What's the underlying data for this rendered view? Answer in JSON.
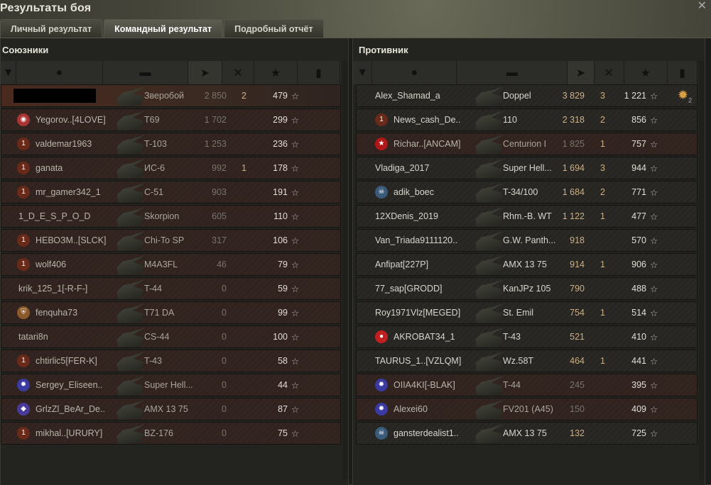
{
  "window": {
    "title": "Результаты боя",
    "close_icon": "close-icon"
  },
  "tabs": [
    {
      "label": "Личный результат",
      "active": false
    },
    {
      "label": "Командный результат",
      "active": true
    },
    {
      "label": "Подробный отчёт",
      "active": false
    }
  ],
  "header_icons": [
    "rank-icon",
    "player-icon",
    "tank-icon",
    "damage-icon",
    "kills-icon",
    "xp-icon",
    "medal-icon"
  ],
  "sort_column": "damage",
  "colors": {
    "alive_damage": "#cdb083",
    "dead_row": "#34261f",
    "self_row": "#4a2a1e"
  },
  "allies": {
    "title": "Союзники",
    "rows": [
      {
        "name": "",
        "redacted": true,
        "self": true,
        "tank": "Зверобой",
        "damage": "2 850",
        "kills": "2",
        "xp": "479",
        "dead": true,
        "badge": ""
      },
      {
        "name": "Yegorov..[4LOVE]",
        "tank": "T69",
        "damage": "1 702",
        "kills": "",
        "xp": "299",
        "dead": true,
        "badge": "rank-emblem-icon"
      },
      {
        "name": "valdemar1963",
        "tank": "T-103",
        "damage": "1 253",
        "kills": "",
        "xp": "236",
        "dead": true,
        "badge": "rank-1-icon"
      },
      {
        "name": "ganata",
        "tank": "ИС-6",
        "damage": "992",
        "kills": "1",
        "xp": "178",
        "dead": true,
        "badge": "rank-1-icon"
      },
      {
        "name": "mr_gamer342_1",
        "tank": "С-51",
        "damage": "903",
        "kills": "",
        "xp": "191",
        "dead": true,
        "badge": "rank-1-icon"
      },
      {
        "name": "1_D_E_S_P_O_D",
        "tank": "Skorpion",
        "damage": "605",
        "kills": "",
        "xp": "110",
        "dead": true,
        "badge": ""
      },
      {
        "name": "НЕВОЗМ..[SLCK]",
        "tank": "Chi-To SP",
        "damage": "317",
        "kills": "",
        "xp": "106",
        "dead": true,
        "badge": "rank-1-icon"
      },
      {
        "name": "wolf406",
        "tank": "M4A3FL",
        "damage": "46",
        "kills": "",
        "xp": "79",
        "dead": true,
        "badge": "rank-1-icon"
      },
      {
        "name": "krik_125_1[-R-F-]",
        "tank": "T-44",
        "damage": "0",
        "kills": "",
        "xp": "59",
        "dead": true,
        "badge": ""
      },
      {
        "name": "fenquha73",
        "tank": "T71 DA",
        "damage": "0",
        "kills": "",
        "xp": "99",
        "dead": true,
        "badge": "shield-badge-icon"
      },
      {
        "name": "tatari8n",
        "tank": "CS-44",
        "damage": "0",
        "kills": "",
        "xp": "100",
        "dead": true,
        "badge": ""
      },
      {
        "name": "chtirlic5[FER-K]",
        "tank": "T-43",
        "damage": "0",
        "kills": "",
        "xp": "58",
        "dead": true,
        "badge": "rank-1-icon"
      },
      {
        "name": "Sergey_Eliseen..",
        "tank": "Super Hell...",
        "damage": "0",
        "kills": "",
        "xp": "44",
        "dead": true,
        "badge": "star-badge-icon"
      },
      {
        "name": "GrlzZl_BeAr_De..",
        "tank": "AMX 13 75",
        "damage": "0",
        "kills": "",
        "xp": "87",
        "dead": true,
        "badge": "diamond-badge-icon"
      },
      {
        "name": "mikhal..[URURY]",
        "tank": "BZ-176",
        "damage": "0",
        "kills": "",
        "xp": "75",
        "dead": true,
        "badge": "rank-1-icon"
      }
    ]
  },
  "enemies": {
    "title": "Противник",
    "rows": [
      {
        "name": "Alex_Shamad_a",
        "tank": "Doppel",
        "damage": "3 829",
        "kills": "3",
        "xp": "1 221",
        "dead": false,
        "badge": "",
        "medal": "2"
      },
      {
        "name": "News_cash_De..",
        "tank": "110",
        "damage": "2 318",
        "kills": "2",
        "xp": "856",
        "dead": false,
        "badge": "rank-1-icon"
      },
      {
        "name": "Richar..[ANCAM]",
        "tank": "Centurion I",
        "damage": "1 825",
        "kills": "1",
        "xp": "757",
        "dead": true,
        "badge": "red-star-badge-icon"
      },
      {
        "name": "Vladiga_2017",
        "tank": "Super Hell...",
        "damage": "1 694",
        "kills": "3",
        "xp": "944",
        "dead": false,
        "badge": ""
      },
      {
        "name": "adik_boec",
        "tank": "T-34/100",
        "damage": "1 684",
        "kills": "2",
        "xp": "771",
        "dead": false,
        "badge": "skull-badge-icon"
      },
      {
        "name": "12XDenis_2019",
        "tank": "Rhm.-B. WT",
        "damage": "1 122",
        "kills": "1",
        "xp": "477",
        "dead": false,
        "badge": ""
      },
      {
        "name": "Van_Triada9111120..",
        "tank": "G.W. Panth...",
        "damage": "918",
        "kills": "",
        "xp": "570",
        "dead": false,
        "badge": ""
      },
      {
        "name": "Anfipat[227P]",
        "tank": "AMX 13 75",
        "damage": "914",
        "kills": "1",
        "xp": "906",
        "dead": false,
        "badge": ""
      },
      {
        "name": "77_sap[GRODD]",
        "tank": "KanJPz 105",
        "damage": "790",
        "kills": "",
        "xp": "488",
        "dead": false,
        "badge": ""
      },
      {
        "name": "Roy1971Vlz[MEGED]",
        "tank": "St. Emil",
        "damage": "754",
        "kills": "1",
        "xp": "514",
        "dead": false,
        "badge": ""
      },
      {
        "name": "AKROBAT34_1",
        "tank": "T-43",
        "damage": "521",
        "kills": "",
        "xp": "410",
        "dead": false,
        "badge": "red-circle-badge-icon"
      },
      {
        "name": "TAURUS_1..[VZLQM]",
        "tank": "Wz.58T",
        "damage": "464",
        "kills": "1",
        "xp": "441",
        "dead": false,
        "badge": ""
      },
      {
        "name": "OIIA4KI[-BLAK]",
        "tank": "T-44",
        "damage": "245",
        "kills": "",
        "xp": "395",
        "dead": true,
        "badge": "star-badge-icon"
      },
      {
        "name": "Alexei60",
        "tank": "FV201 (A45)",
        "damage": "150",
        "kills": "",
        "xp": "409",
        "dead": true,
        "badge": "star-badge-icon"
      },
      {
        "name": "gansterdealist1..",
        "tank": "AMX 13 75",
        "damage": "132",
        "kills": "",
        "xp": "725",
        "dead": false,
        "badge": "skull-badge-icon"
      }
    ]
  }
}
